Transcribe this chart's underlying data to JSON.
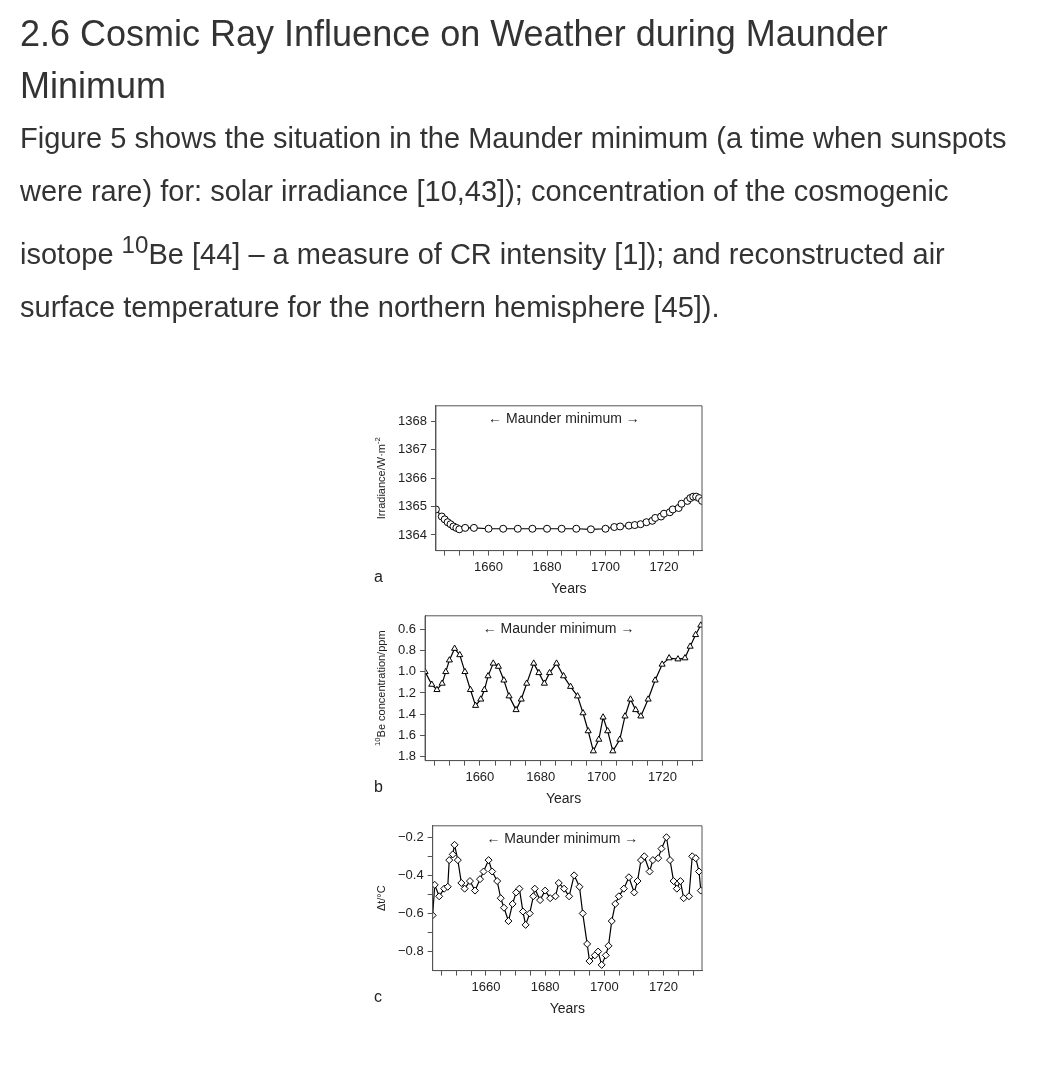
{
  "chart_data": [
    {
      "type": "line",
      "title": "2.6 Cosmic Ray Influence on Weather during Maunder Minimum",
      "subtitle": "Figure 5 shows the situation in the Maunder minimum (a time when sunspots were rare) for: solar irradiance [10,43]); concentration of the cosmogenic isotope $^{10}$Be [44] – a measure of CR intensity [1]); and reconstructed air surface temperature for the northern hemisphere [45]).",
      "xlabel": "Years",
      "ylabel": "Irradiance/W·m$^{-2}$",
      "annotations": [
        "← Maunder minimum →",
        "a"
      ],
      "marker": "circle",
      "grid": false,
      "xlim": [
        1642,
        1733
      ],
      "xticks": [
        {
          "value": 1645,
          "label": null
        },
        {
          "value": 1650,
          "label": null
        },
        {
          "value": 1655,
          "label": null
        },
        1660,
        {
          "value": 1665,
          "label": null
        },
        {
          "value": 1670,
          "label": null
        },
        {
          "value": 1675,
          "label": null
        },
        1680,
        {
          "value": 1685,
          "label": null
        },
        {
          "value": 1690,
          "label": null
        },
        {
          "value": 1695,
          "label": null
        },
        1700,
        {
          "value": 1705,
          "label": null
        },
        {
          "value": 1710,
          "label": null
        },
        {
          "value": 1715,
          "label": null
        },
        1720,
        {
          "value": 1725,
          "label": null
        },
        {
          "value": 1730,
          "label": null
        }
      ],
      "ylim": [
        1363.45,
        1368.55
      ],
      "yticks": [
        1364,
        1365,
        1366,
        1367,
        1368
      ],
      "series": [
        {
          "color": "#000000",
          "x": [
            1642,
            1644,
            1645,
            1646,
            1647,
            1648,
            1649,
            1650,
            1652,
            1655,
            1660,
            1665,
            1670,
            1675,
            1680,
            1685,
            1690,
            1695,
            1700,
            1703,
            1705,
            1708,
            1710,
            1712,
            1714,
            1716,
            1717,
            1719,
            1720,
            1722,
            1723,
            1725,
            1726,
            1728,
            1729,
            1730,
            1731,
            1732,
            1733
          ],
          "values": [
            1364.9,
            1364.65,
            1364.55,
            1364.45,
            1364.38,
            1364.3,
            1364.25,
            1364.2,
            1364.25,
            1364.25,
            1364.22,
            1364.22,
            1364.22,
            1364.22,
            1364.22,
            1364.22,
            1364.22,
            1364.2,
            1364.22,
            1364.28,
            1364.3,
            1364.33,
            1364.35,
            1364.38,
            1364.45,
            1364.5,
            1364.6,
            1364.65,
            1364.75,
            1364.8,
            1364.9,
            1364.95,
            1365.1,
            1365.2,
            1365.3,
            1365.35,
            1365.35,
            1365.3,
            1365.2
          ]
        }
      ]
    },
    {
      "type": "line",
      "xlabel": "Years",
      "ylabel": "$^{10}$Be concentration/ppm",
      "annotations": [
        "← Maunder minimum →",
        "b"
      ],
      "marker": "triangle",
      "grid": false,
      "xlim": [
        1642,
        1733
      ],
      "xticks": [
        {
          "value": 1645,
          "label": null
        },
        {
          "value": 1650,
          "label": null
        },
        {
          "value": 1655,
          "label": null
        },
        1660,
        {
          "value": 1665,
          "label": null
        },
        {
          "value": 1670,
          "label": null
        },
        {
          "value": 1675,
          "label": null
        },
        1680,
        {
          "value": 1685,
          "label": null
        },
        {
          "value": 1690,
          "label": null
        },
        {
          "value": 1695,
          "label": null
        },
        1700,
        {
          "value": 1705,
          "label": null
        },
        {
          "value": 1710,
          "label": null
        },
        {
          "value": 1715,
          "label": null
        },
        1720,
        {
          "value": 1725,
          "label": null
        },
        {
          "value": 1730,
          "label": null
        }
      ],
      "ylim": [
        1.84,
        0.47
      ],
      "yticks": [
        0.6,
        0.8,
        {
          "value": 1,
          "label": "1.0"
        },
        1.2,
        1.4,
        1.6,
        1.8
      ],
      "series": [
        {
          "color": "#000000",
          "x": [
            1642,
            1644.2,
            1645.9,
            1647.6,
            1648.8,
            1650,
            1651.7,
            1653.4,
            1655.1,
            1656.9,
            1658.6,
            1660.3,
            1661.5,
            1662.7,
            1664.4,
            1666.1,
            1667.9,
            1669.6,
            1671.9,
            1673.6,
            1675.4,
            1677.7,
            1679.4,
            1681.2,
            1682.9,
            1685.2,
            1687.5,
            1689.8,
            1692.1,
            1693.9,
            1695.6,
            1697.3,
            1699.1,
            1700.5,
            1702,
            1703.7,
            1706,
            1707.7,
            1709.5,
            1711.2,
            1712.9,
            1715.3,
            1717.6,
            1719.9,
            1722.2,
            1725.1,
            1727.4,
            1729.1,
            1730.9,
            1732.6
          ],
          "values": [
            1.0,
            1.12,
            1.17,
            1.11,
            1.0,
            0.89,
            0.78,
            0.84,
            1.0,
            1.17,
            1.32,
            1.26,
            1.17,
            1.04,
            0.92,
            0.95,
            1.08,
            1.23,
            1.36,
            1.26,
            1.11,
            0.92,
            1.01,
            1.11,
            1.01,
            0.92,
            1.04,
            1.14,
            1.23,
            1.39,
            1.56,
            1.75,
            1.64,
            1.43,
            1.56,
            1.75,
            1.64,
            1.42,
            1.26,
            1.36,
            1.42,
            1.26,
            1.08,
            0.93,
            0.87,
            0.88,
            0.87,
            0.76,
            0.65,
            0.56
          ]
        }
      ]
    },
    {
      "type": "line",
      "xlabel": "Years",
      "ylabel": "Δt/°C",
      "annotations": [
        "← Maunder minimum →",
        "c"
      ],
      "marker": "diamond",
      "grid": false,
      "xlim": [
        1642,
        1733
      ],
      "xticks": [
        {
          "value": 1645,
          "label": null
        },
        {
          "value": 1650,
          "label": null
        },
        {
          "value": 1655,
          "label": null
        },
        1660,
        {
          "value": 1665,
          "label": null
        },
        {
          "value": 1670,
          "label": null
        },
        {
          "value": 1675,
          "label": null
        },
        1680,
        {
          "value": 1685,
          "label": null
        },
        {
          "value": 1690,
          "label": null
        },
        {
          "value": 1695,
          "label": null
        },
        1700,
        {
          "value": 1705,
          "label": null
        },
        {
          "value": 1710,
          "label": null
        },
        {
          "value": 1715,
          "label": null
        },
        1720,
        {
          "value": 1725,
          "label": null
        },
        {
          "value": 1730,
          "label": null
        }
      ],
      "ylim": [
        -0.9,
        -0.14
      ],
      "yticks": [
        {
          "value": -0.8,
          "label": "−0.8"
        },
        {
          "value": -0.7,
          "label": null
        },
        {
          "value": -0.6,
          "label": "−0.6"
        },
        {
          "value": -0.5,
          "label": null
        },
        {
          "value": -0.4,
          "label": "−0.4"
        },
        {
          "value": -0.3,
          "label": null
        },
        {
          "value": -0.2,
          "label": "−0.2"
        }
      ],
      "series": [
        {
          "color": "#000000",
          "x": [
            1642,
            1642.7,
            1644.2,
            1645.9,
            1647.1,
            1647.6,
            1648.8,
            1649.4,
            1650.5,
            1651.7,
            1652.8,
            1654.6,
            1656.3,
            1658,
            1659.2,
            1660.9,
            1662.1,
            1663.8,
            1665,
            1666.1,
            1667.6,
            1669,
            1670.2,
            1671.3,
            1672.5,
            1673.4,
            1674.8,
            1676,
            1676.5,
            1678.3,
            1680,
            1681.7,
            1683.5,
            1684.6,
            1686.4,
            1688.1,
            1689.8,
            1691.6,
            1692.7,
            1694.2,
            1695,
            1696.8,
            1697.9,
            1699.1,
            1700.5,
            1701.4,
            1702.5,
            1703.7,
            1704.9,
            1706.6,
            1708.3,
            1710.1,
            1711.2,
            1712.4,
            1713.5,
            1715.3,
            1716.4,
            1718.2,
            1719.3,
            1721,
            1722.2,
            1723.4,
            1724.5,
            1725.7,
            1726.8,
            1728.6,
            1729.7,
            1730.9,
            1732,
            1732.6
          ],
          "values": [
            -0.61,
            -0.45,
            -0.51,
            -0.47,
            -0.46,
            -0.32,
            -0.29,
            -0.24,
            -0.32,
            -0.44,
            -0.47,
            -0.43,
            -0.48,
            -0.42,
            -0.38,
            -0.32,
            -0.38,
            -0.43,
            -0.52,
            -0.57,
            -0.64,
            -0.55,
            -0.49,
            -0.47,
            -0.59,
            -0.66,
            -0.6,
            -0.51,
            -0.47,
            -0.53,
            -0.48,
            -0.52,
            -0.51,
            -0.44,
            -0.47,
            -0.51,
            -0.4,
            -0.46,
            -0.6,
            -0.76,
            -0.85,
            -0.82,
            -0.8,
            -0.87,
            -0.82,
            -0.77,
            -0.64,
            -0.55,
            -0.51,
            -0.47,
            -0.41,
            -0.49,
            -0.43,
            -0.32,
            -0.3,
            -0.38,
            -0.32,
            -0.31,
            -0.26,
            -0.2,
            -0.32,
            -0.43,
            -0.47,
            -0.43,
            -0.52,
            -0.51,
            -0.3,
            -0.31,
            -0.38,
            -0.48
          ]
        }
      ]
    }
  ]
}
